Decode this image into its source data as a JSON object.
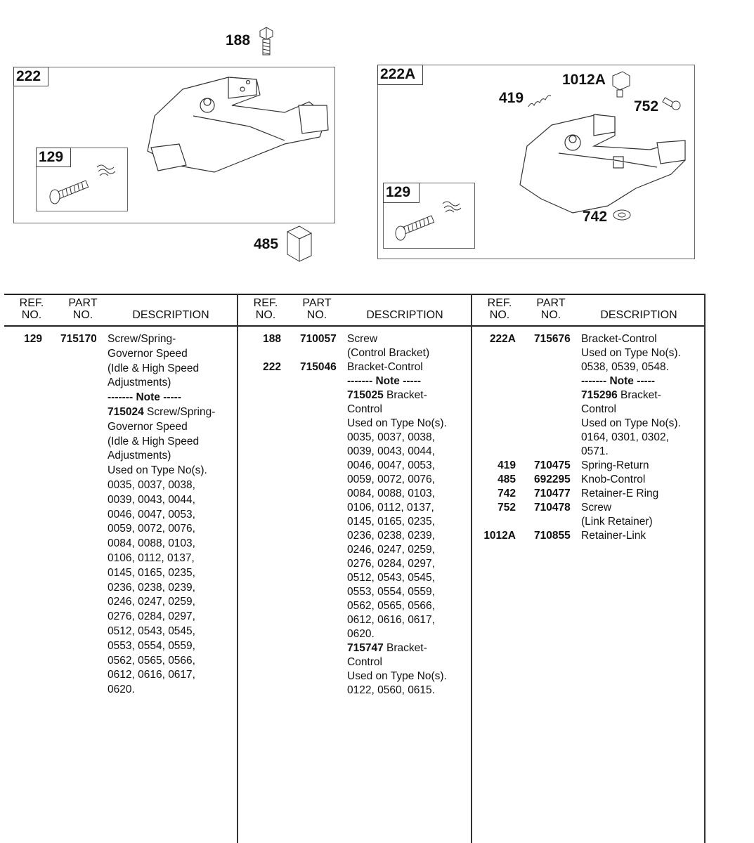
{
  "diagram": {
    "callouts": {
      "c188": "188",
      "c485": "485",
      "c419": "419",
      "c1012a": "1012A",
      "c752": "752",
      "c742": "742"
    },
    "panel_left": {
      "label": "222",
      "inset_label": "129"
    },
    "panel_right": {
      "label": "222A",
      "inset_label": "129"
    }
  },
  "table": {
    "headers": {
      "ref_1": "REF.",
      "ref_2": "NO.",
      "part_1": "PART",
      "part_2": "NO.",
      "description": "DESCRIPTION"
    },
    "columns": [
      [
        {
          "ref": "129",
          "part": "715170",
          "lines": [
            {
              "text": "Screw/Spring-"
            },
            {
              "text": "Governor Speed"
            },
            {
              "text": "(Idle & High Speed"
            },
            {
              "text": "Adjustments)"
            },
            {
              "bold": "------- Note -----",
              "text": ""
            },
            {
              "bold": "715024",
              "text": " Screw/Spring-"
            },
            {
              "text": "Governor Speed"
            },
            {
              "text": "(Idle & High Speed"
            },
            {
              "text": "Adjustments)"
            },
            {
              "text": "Used on Type No(s)."
            },
            {
              "text": "0035, 0037, 0038,"
            },
            {
              "text": "0039, 0043, 0044,"
            },
            {
              "text": "0046, 0047, 0053,"
            },
            {
              "text": "0059, 0072, 0076,"
            },
            {
              "text": "0084, 0088, 0103,"
            },
            {
              "text": "0106, 0112, 0137,"
            },
            {
              "text": "0145, 0165, 0235,"
            },
            {
              "text": "0236, 0238, 0239,"
            },
            {
              "text": "0246, 0247, 0259,"
            },
            {
              "text": "0276, 0284, 0297,"
            },
            {
              "text": "0512, 0543, 0545,"
            },
            {
              "text": "0553, 0554, 0559,"
            },
            {
              "text": "0562, 0565, 0566,"
            },
            {
              "text": "0612, 0616, 0617,"
            },
            {
              "text": "0620."
            }
          ]
        }
      ],
      [
        {
          "ref": "188",
          "part": "710057",
          "lines": [
            {
              "text": "Screw"
            },
            {
              "text": "(Control Bracket)"
            }
          ]
        },
        {
          "ref": "222",
          "part": "715046",
          "lines": [
            {
              "text": "Bracket-Control"
            },
            {
              "bold": "------- Note -----",
              "text": ""
            },
            {
              "bold": "715025",
              "text": " Bracket-"
            },
            {
              "text": "Control"
            },
            {
              "text": "Used on Type No(s)."
            },
            {
              "text": "0035, 0037, 0038,"
            },
            {
              "text": "0039, 0043, 0044,"
            },
            {
              "text": "0046, 0047, 0053,"
            },
            {
              "text": "0059, 0072, 0076,"
            },
            {
              "text": "0084, 0088, 0103,"
            },
            {
              "text": "0106, 0112, 0137,"
            },
            {
              "text": "0145, 0165, 0235,"
            },
            {
              "text": "0236, 0238, 0239,"
            },
            {
              "text": "0246, 0247, 0259,"
            },
            {
              "text": "0276, 0284, 0297,"
            },
            {
              "text": "0512, 0543, 0545,"
            },
            {
              "text": "0553, 0554, 0559,"
            },
            {
              "text": "0562, 0565, 0566,"
            },
            {
              "text": "0612, 0616, 0617,"
            },
            {
              "text": "0620."
            },
            {
              "bold": "715747",
              "text": " Bracket-"
            },
            {
              "text": "Control"
            },
            {
              "text": "Used on Type No(s)."
            },
            {
              "text": "0122, 0560, 0615."
            }
          ]
        }
      ],
      [
        {
          "ref": "222A",
          "part": "715676",
          "lines": [
            {
              "text": "Bracket-Control"
            },
            {
              "text": "Used on Type No(s)."
            },
            {
              "text": "0538, 0539, 0548."
            },
            {
              "bold": "------- Note -----",
              "text": ""
            },
            {
              "bold": "715296",
              "text": " Bracket-"
            },
            {
              "text": "Control"
            },
            {
              "text": "Used on Type No(s)."
            },
            {
              "text": "0164, 0301, 0302,"
            },
            {
              "text": "0571."
            }
          ]
        },
        {
          "ref": "419",
          "part": "710475",
          "lines": [
            {
              "text": "Spring-Return"
            }
          ]
        },
        {
          "ref": "485",
          "part": "692295",
          "lines": [
            {
              "text": "Knob-Control"
            }
          ]
        },
        {
          "ref": "742",
          "part": "710477",
          "lines": [
            {
              "text": "Retainer-E Ring"
            }
          ]
        },
        {
          "ref": "752",
          "part": "710478",
          "lines": [
            {
              "text": "Screw"
            },
            {
              "text": "(Link Retainer)"
            }
          ]
        },
        {
          "ref": "1012A",
          "part": "710855",
          "lines": [
            {
              "text": "Retainer-Link"
            }
          ]
        }
      ]
    ]
  }
}
